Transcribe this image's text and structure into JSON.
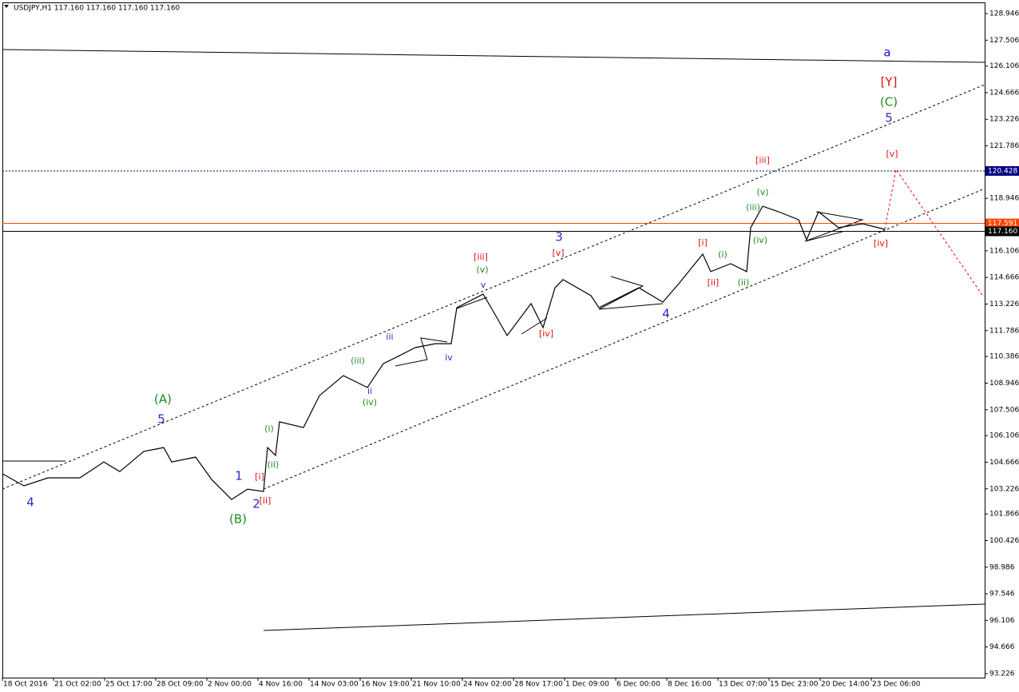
{
  "chart_data": {
    "type": "line",
    "title": "USDJPY,H1  117.160 117.160 117.160 117.160",
    "color": "#000000",
    "xlim": [
      0,
      1230
    ],
    "ylim": [
      93.01,
      129.55
    ],
    "x": [
      0,
      27,
      57,
      97,
      127,
      147,
      177,
      202,
      212,
      242,
      262,
      287,
      307,
      327,
      332,
      342,
      347,
      377,
      397,
      427,
      457,
      477,
      497,
      517,
      542,
      562,
      569,
      602,
      612,
      632,
      662,
      677,
      692,
      702,
      737,
      747,
      797,
      827,
      847,
      877,
      887,
      912,
      932,
      937,
      952,
      972,
      997,
      1007,
      1022,
      1047,
      1077,
      1105
    ],
    "values": [
      104.04,
      103.39,
      103.82,
      103.82,
      104.68,
      104.16,
      105.25,
      105.46,
      104.68,
      104.94,
      103.73,
      102.65,
      103.21,
      103.08,
      105.46,
      105.04,
      106.85,
      106.54,
      108.27,
      109.35,
      108.71,
      110.0,
      110.43,
      110.87,
      111.08,
      111.08,
      113.03,
      113.76,
      113.03,
      111.52,
      113.25,
      111.95,
      114.11,
      114.55,
      113.68,
      113.03,
      114.11,
      113.33,
      114.33,
      115.93,
      114.98,
      115.41,
      114.98,
      117.36,
      118.52,
      118.22,
      117.79,
      116.71,
      118.22,
      117.36,
      117.57,
      117.27
    ],
    "xticks": [
      {
        "value": 0,
        "label": "18 Oct 2016"
      },
      {
        "value": 64,
        "label": "21 Oct 02:00"
      },
      {
        "value": 128,
        "label": "25 Oct 17:00"
      },
      {
        "value": 192,
        "label": "28 Oct 09:00"
      },
      {
        "value": 256,
        "label": "2 Nov 00:00"
      },
      {
        "value": 320,
        "label": "4 Nov 16:00"
      },
      {
        "value": 384,
        "label": "14 Nov 03:00"
      },
      {
        "value": 448,
        "label": "16 Nov 19:00"
      },
      {
        "value": 512,
        "label": "21 Nov 10:00"
      },
      {
        "value": 576,
        "label": "24 Nov 02:00"
      },
      {
        "value": 640,
        "label": "28 Nov 17:00"
      },
      {
        "value": 704,
        "label": "1 Dec 09:00"
      },
      {
        "value": 768,
        "label": "6 Dec 00:00"
      },
      {
        "value": 832,
        "label": "8 Dec 16:00"
      },
      {
        "value": 896,
        "label": "13 Dec 07:00"
      },
      {
        "value": 960,
        "label": "15 Dec 23:00"
      },
      {
        "value": 1024,
        "label": "20 Dec 14:00"
      },
      {
        "value": 1088,
        "label": "23 Dec 06:00"
      }
    ],
    "yticks": [
      128.946,
      127.506,
      126.106,
      124.666,
      123.226,
      121.786,
      118.946,
      116.106,
      114.666,
      113.226,
      111.786,
      110.386,
      108.946,
      107.506,
      106.106,
      104.666,
      103.226,
      101.866,
      100.426,
      98.986,
      97.546,
      96.106,
      94.666,
      93.226
    ],
    "price_lines": [
      {
        "value": 120.428,
        "label": "120.428",
        "color": "#000080",
        "style": "dotted"
      },
      {
        "value": 117.591,
        "label": "117.591",
        "color": "#ff4500",
        "style": "solid"
      },
      {
        "value": 117.16,
        "label": "117.160",
        "color": "#000000",
        "style": "solid"
      }
    ],
    "annotations": [
      {
        "text": "a",
        "x": 1108,
        "y": 126.83,
        "color": "#1010d0",
        "size": 15
      },
      {
        "text": "[Y]",
        "x": 1110,
        "y": 125.23,
        "color": "#e01010",
        "size": 15
      },
      {
        "text": "(C)",
        "x": 1110,
        "y": 124.15,
        "color": "#1e8c1e",
        "size": 15
      },
      {
        "text": "5",
        "x": 1110,
        "y": 123.28,
        "color": "#2a2ac8",
        "size": 15
      },
      {
        "text": "[v]",
        "x": 1114,
        "y": 121.33,
        "color": "#e01010",
        "size": 11
      },
      {
        "text": "[iii]",
        "x": 952,
        "y": 120.99,
        "color": "#e01010",
        "size": 11
      },
      {
        "text": "(v)",
        "x": 952,
        "y": 119.26,
        "color": "#1e8c1e",
        "size": 11
      },
      {
        "text": "(iii)",
        "x": 940,
        "y": 118.44,
        "color": "#1e8c1e",
        "size": 11
      },
      {
        "text": "(iv)",
        "x": 949,
        "y": 116.67,
        "color": "#1e8c1e",
        "size": 11
      },
      {
        "text": "[iv]",
        "x": 1100,
        "y": 116.49,
        "color": "#e01010",
        "size": 11
      },
      {
        "text": "3",
        "x": 697,
        "y": 116.84,
        "color": "#2a2ac8",
        "size": 15
      },
      {
        "text": "[i]",
        "x": 877,
        "y": 116.53,
        "color": "#e01010",
        "size": 11
      },
      {
        "text": "(i)",
        "x": 902,
        "y": 115.89,
        "color": "#1e8c1e",
        "size": 11
      },
      {
        "text": "[ii]",
        "x": 890,
        "y": 114.37,
        "color": "#e01010",
        "size": 11
      },
      {
        "text": "(ii)",
        "x": 928,
        "y": 114.37,
        "color": "#1e8c1e",
        "size": 11
      },
      {
        "text": "[v]",
        "x": 696,
        "y": 115.97,
        "color": "#e01010",
        "size": 11
      },
      {
        "text": "[iii]",
        "x": 599,
        "y": 115.76,
        "color": "#e01010",
        "size": 11
      },
      {
        "text": "(v)",
        "x": 601,
        "y": 115.06,
        "color": "#1e8c1e",
        "size": 11
      },
      {
        "text": "v",
        "x": 602,
        "y": 114.24,
        "color": "#2a2ac8",
        "size": 11
      },
      {
        "text": "[iv]",
        "x": 681,
        "y": 111.6,
        "color": "#e01010",
        "size": 11
      },
      {
        "text": "4",
        "x": 831,
        "y": 112.68,
        "color": "#2a2ac8",
        "size": 15
      },
      {
        "text": "iii",
        "x": 485,
        "y": 111.43,
        "color": "#2a2ac8",
        "size": 11
      },
      {
        "text": "iv",
        "x": 559,
        "y": 110.31,
        "color": "#2a2ac8",
        "size": 11
      },
      {
        "text": "(iii)",
        "x": 445,
        "y": 110.13,
        "color": "#1e8c1e",
        "size": 11
      },
      {
        "text": "ii",
        "x": 460,
        "y": 108.49,
        "color": "#2a2ac8",
        "size": 11
      },
      {
        "text": "(iv)",
        "x": 460,
        "y": 107.88,
        "color": "#1e8c1e",
        "size": 11
      },
      {
        "text": "(A)",
        "x": 201,
        "y": 108.06,
        "color": "#1e8c1e",
        "size": 15
      },
      {
        "text": "5",
        "x": 199,
        "y": 106.97,
        "color": "#2a2ac8",
        "size": 15
      },
      {
        "text": "(i)",
        "x": 334,
        "y": 106.45,
        "color": "#1e8c1e",
        "size": 11
      },
      {
        "text": "(ii)",
        "x": 339,
        "y": 104.51,
        "color": "#1e8c1e",
        "size": 11
      },
      {
        "text": "1",
        "x": 296,
        "y": 103.9,
        "color": "#2a2ac8",
        "size": 15
      },
      {
        "text": "[i]",
        "x": 322,
        "y": 103.86,
        "color": "#e01010",
        "size": 11
      },
      {
        "text": "4",
        "x": 35,
        "y": 102.48,
        "color": "#2a2ac8",
        "size": 15
      },
      {
        "text": "2",
        "x": 318,
        "y": 102.39,
        "color": "#2a2ac8",
        "size": 15
      },
      {
        "text": "[ii]",
        "x": 329,
        "y": 102.57,
        "color": "#e01010",
        "size": 11
      },
      {
        "text": "(B)",
        "x": 295,
        "y": 101.57,
        "color": "#1e8c1e",
        "size": 15
      }
    ]
  }
}
